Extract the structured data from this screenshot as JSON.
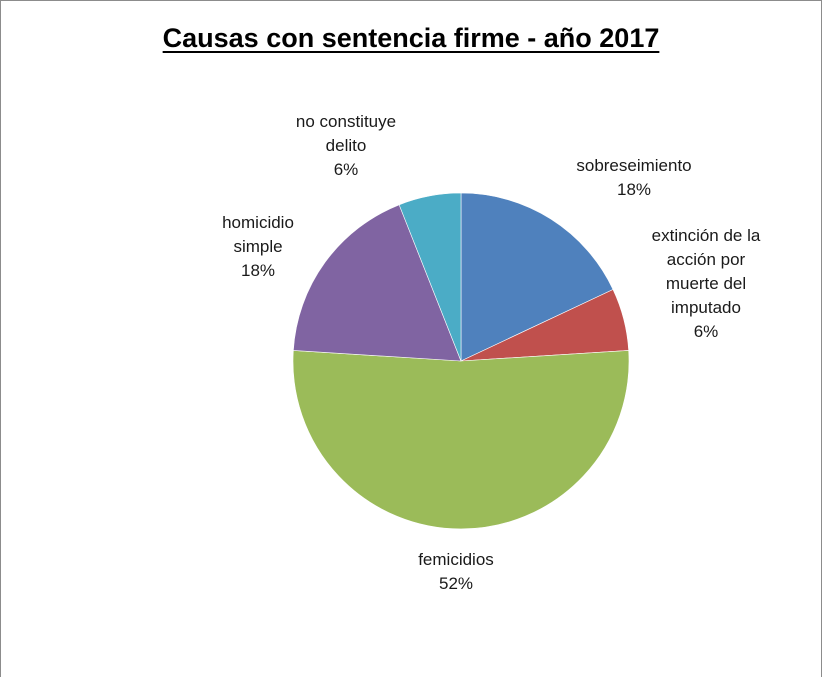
{
  "chart_data": {
    "type": "pie",
    "title": "Causas con sentencia firme - año 2017",
    "slices": [
      {
        "label_lines": [
          "sobreseimiento"
        ],
        "value_label": "18%",
        "value": 18,
        "color": "#4f81bd"
      },
      {
        "label_lines": [
          "extinción de la",
          "acción por",
          "muerte del",
          "imputado"
        ],
        "value_label": "6%",
        "value": 6,
        "color": "#c0504d"
      },
      {
        "label_lines": [
          "femicidios"
        ],
        "value_label": "52%",
        "value": 52,
        "color": "#9bbb59"
      },
      {
        "label_lines": [
          "homicidio",
          "simple"
        ],
        "value_label": "18%",
        "value": 18,
        "color": "#8064a2"
      },
      {
        "label_lines": [
          "no constituye",
          "delito"
        ],
        "value_label": "6%",
        "value": 6,
        "color": "#4bacc6"
      }
    ],
    "start_angle_deg": 0,
    "direction": "clockwise",
    "legend": "none"
  }
}
